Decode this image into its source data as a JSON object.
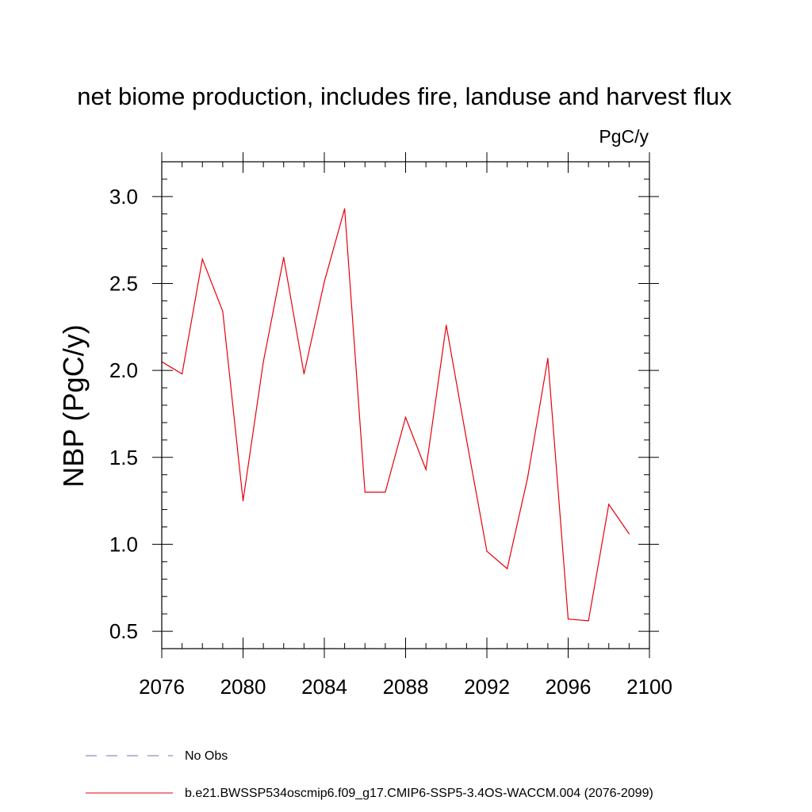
{
  "chart_data": {
    "type": "line",
    "title": "net biome production, includes fire, landuse and harvest flux",
    "units": "PgC/y",
    "ylabel": "NBP  (PgC/y)",
    "xlabel": "",
    "xlim": [
      2076,
      2100
    ],
    "ylim": [
      0.4,
      3.2
    ],
    "xticks": [
      "2076",
      "2080",
      "2084",
      "2088",
      "2092",
      "2096",
      "2100"
    ],
    "yticks": [
      "0.5",
      "1.0",
      "1.5",
      "2.0",
      "2.5",
      "3.0"
    ],
    "series": [
      {
        "name": "b.e21.BWSSP534oscmip6.f09_g17.CMIP6-SSP5-3.4OS-WACCM.004 (2076-2099)",
        "color": "#e8000b",
        "x": [
          2076,
          2077,
          2078,
          2079,
          2080,
          2081,
          2082,
          2083,
          2084,
          2085,
          2086,
          2087,
          2088,
          2089,
          2090,
          2091,
          2092,
          2093,
          2094,
          2095,
          2096,
          2097,
          2098,
          2099
        ],
        "values": [
          2.05,
          1.98,
          2.64,
          2.34,
          1.25,
          2.05,
          2.65,
          1.98,
          2.51,
          2.93,
          1.3,
          1.3,
          1.73,
          1.43,
          2.26,
          1.6,
          0.96,
          0.86,
          1.38,
          2.07,
          0.57,
          0.56,
          1.23,
          1.06
        ]
      }
    ],
    "legend": [
      {
        "label": "No Obs",
        "style": "dashed",
        "color": "#7a6fb0"
      },
      {
        "label": "b.e21.BWSSP534oscmip6.f09_g17.CMIP6-SSP5-3.4OS-WACCM.004 (2076-2099)",
        "style": "solid",
        "color": "#e8000b"
      }
    ]
  }
}
